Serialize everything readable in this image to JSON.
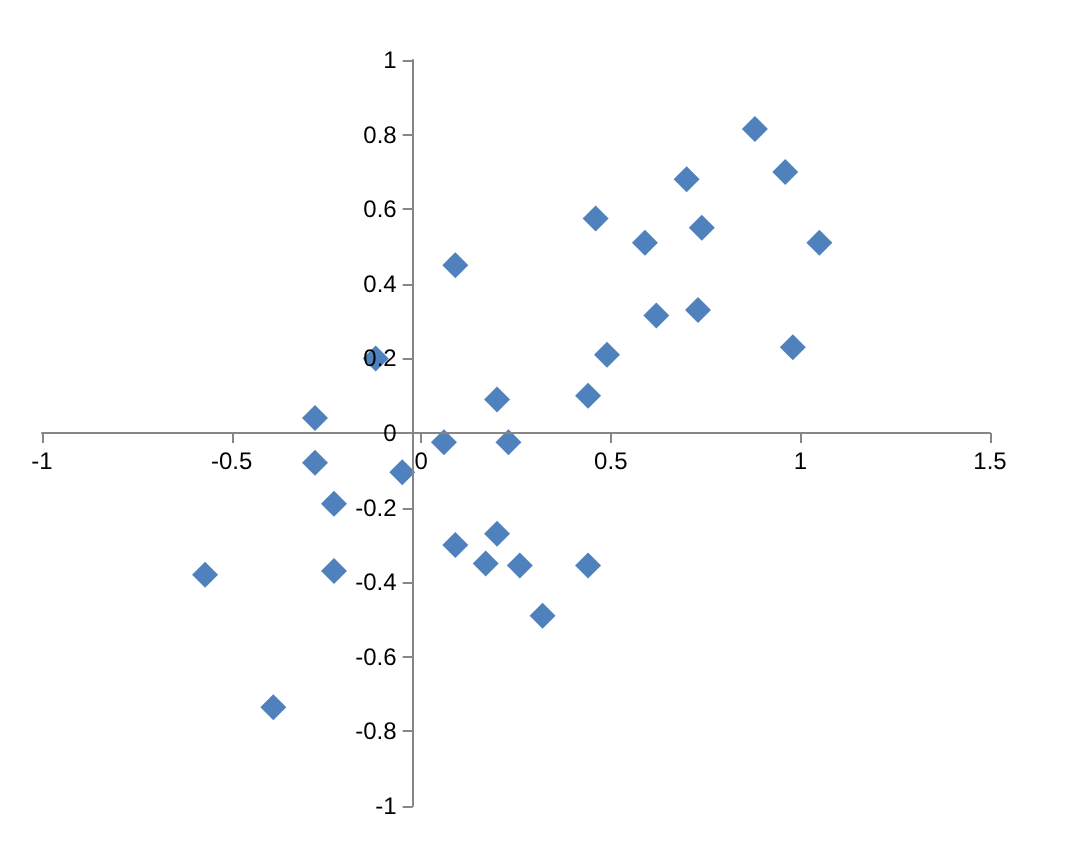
{
  "chart_data": {
    "type": "scatter",
    "marker": "diamond",
    "color": "#4f81bd",
    "x": [
      -0.57,
      -0.39,
      -0.28,
      -0.28,
      -0.23,
      -0.23,
      -0.12,
      -0.05,
      0.06,
      0.09,
      0.09,
      0.17,
      0.2,
      0.2,
      0.23,
      0.26,
      0.32,
      0.44,
      0.44,
      0.46,
      0.49,
      0.59,
      0.62,
      0.7,
      0.73,
      0.74,
      0.88,
      0.96,
      0.98,
      1.05
    ],
    "values": [
      -0.38,
      -0.735,
      0.04,
      -0.08,
      -0.19,
      -0.37,
      0.2,
      -0.105,
      -0.025,
      0.45,
      -0.3,
      -0.35,
      0.09,
      -0.27,
      -0.025,
      -0.355,
      -0.49,
      0.1,
      -0.355,
      0.575,
      0.21,
      0.51,
      0.315,
      0.68,
      0.33,
      0.55,
      0.815,
      0.7,
      0.23,
      0.51
    ],
    "xlim": [
      -1,
      1.5
    ],
    "xticks": [
      -1,
      -0.5,
      0,
      0.5,
      1,
      1.5
    ],
    "ylim": [
      -1,
      1
    ],
    "yticks": [
      -1,
      -0.8,
      -0.6,
      -0.4,
      -0.2,
      0,
      0.2,
      0.4,
      0.6,
      0.8,
      1
    ]
  }
}
